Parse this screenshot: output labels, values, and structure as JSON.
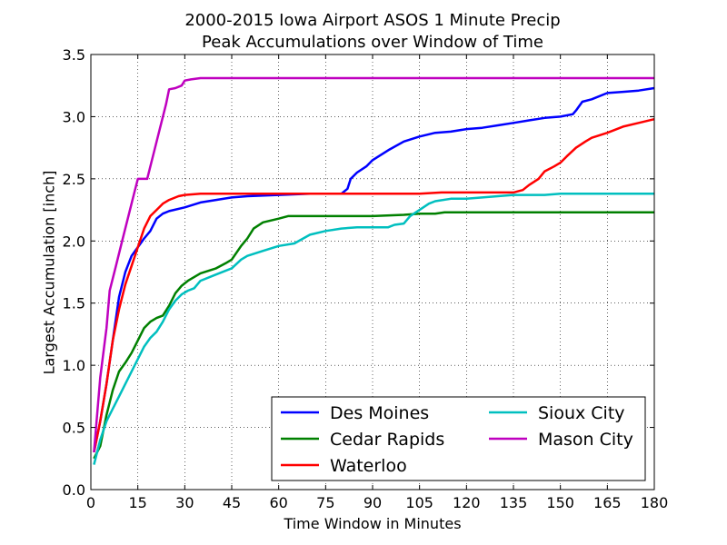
{
  "chart_data": {
    "type": "line",
    "title": "2000-2015 Iowa Airport ASOS 1 Minute Precip",
    "subtitle": "Peak Accumulations over Window of Time",
    "xlabel": "Time Window in Minutes",
    "ylabel": "Largest Accumulation [inch]",
    "xlim": [
      0,
      180
    ],
    "ylim": [
      0,
      3.5
    ],
    "xticks": [
      0,
      15,
      30,
      45,
      60,
      75,
      90,
      105,
      120,
      135,
      150,
      165,
      180
    ],
    "xtick_labels": [
      "0",
      "15",
      "30",
      "45",
      "60",
      "75",
      "90",
      "105",
      "120",
      "135",
      "150",
      "165",
      "180"
    ],
    "yticks": [
      0,
      0.5,
      1.0,
      1.5,
      2.0,
      2.5,
      3.0,
      3.5
    ],
    "ytick_labels": [
      "0.0",
      "0.5",
      "1.0",
      "1.5",
      "2.0",
      "2.5",
      "3.0",
      "3.5"
    ],
    "grid": true,
    "legend_position": "lower-right",
    "series": [
      {
        "name": "Des Moines",
        "color": "#0000ff",
        "points": [
          [
            1,
            0.3
          ],
          [
            3,
            0.55
          ],
          [
            5,
            0.85
          ],
          [
            7,
            1.2
          ],
          [
            9,
            1.55
          ],
          [
            11,
            1.75
          ],
          [
            13,
            1.88
          ],
          [
            15,
            1.95
          ],
          [
            17,
            2.02
          ],
          [
            19,
            2.08
          ],
          [
            21,
            2.18
          ],
          [
            23,
            2.22
          ],
          [
            25,
            2.24
          ],
          [
            30,
            2.27
          ],
          [
            35,
            2.31
          ],
          [
            40,
            2.33
          ],
          [
            45,
            2.35
          ],
          [
            50,
            2.36
          ],
          [
            60,
            2.37
          ],
          [
            70,
            2.38
          ],
          [
            80,
            2.38
          ],
          [
            82,
            2.42
          ],
          [
            83,
            2.5
          ],
          [
            85,
            2.55
          ],
          [
            88,
            2.6
          ],
          [
            90,
            2.65
          ],
          [
            95,
            2.73
          ],
          [
            100,
            2.8
          ],
          [
            105,
            2.84
          ],
          [
            110,
            2.87
          ],
          [
            115,
            2.88
          ],
          [
            120,
            2.9
          ],
          [
            125,
            2.91
          ],
          [
            130,
            2.93
          ],
          [
            135,
            2.95
          ],
          [
            140,
            2.97
          ],
          [
            145,
            2.99
          ],
          [
            150,
            3.0
          ],
          [
            154,
            3.02
          ],
          [
            155,
            3.05
          ],
          [
            157,
            3.12
          ],
          [
            160,
            3.14
          ],
          [
            165,
            3.19
          ],
          [
            170,
            3.2
          ],
          [
            175,
            3.21
          ],
          [
            180,
            3.23
          ]
        ]
      },
      {
        "name": "Cedar Rapids",
        "color": "#008000",
        "points": [
          [
            1,
            0.25
          ],
          [
            3,
            0.35
          ],
          [
            5,
            0.6
          ],
          [
            7,
            0.8
          ],
          [
            9,
            0.95
          ],
          [
            11,
            1.02
          ],
          [
            13,
            1.1
          ],
          [
            15,
            1.2
          ],
          [
            17,
            1.3
          ],
          [
            19,
            1.35
          ],
          [
            21,
            1.38
          ],
          [
            23,
            1.4
          ],
          [
            25,
            1.48
          ],
          [
            27,
            1.58
          ],
          [
            29,
            1.64
          ],
          [
            31,
            1.68
          ],
          [
            35,
            1.74
          ],
          [
            40,
            1.78
          ],
          [
            43,
            1.82
          ],
          [
            45,
            1.85
          ],
          [
            48,
            1.96
          ],
          [
            50,
            2.02
          ],
          [
            52,
            2.1
          ],
          [
            55,
            2.15
          ],
          [
            60,
            2.18
          ],
          [
            63,
            2.2
          ],
          [
            70,
            2.2
          ],
          [
            80,
            2.2
          ],
          [
            90,
            2.2
          ],
          [
            100,
            2.21
          ],
          [
            105,
            2.22
          ],
          [
            110,
            2.22
          ],
          [
            113,
            2.23
          ],
          [
            120,
            2.23
          ],
          [
            140,
            2.23
          ],
          [
            160,
            2.23
          ],
          [
            180,
            2.23
          ]
        ]
      },
      {
        "name": "Waterloo",
        "color": "#ff0000",
        "points": [
          [
            1,
            0.3
          ],
          [
            3,
            0.55
          ],
          [
            5,
            0.85
          ],
          [
            7,
            1.2
          ],
          [
            9,
            1.45
          ],
          [
            11,
            1.65
          ],
          [
            13,
            1.8
          ],
          [
            15,
            1.95
          ],
          [
            17,
            2.1
          ],
          [
            19,
            2.2
          ],
          [
            21,
            2.25
          ],
          [
            23,
            2.3
          ],
          [
            25,
            2.33
          ],
          [
            28,
            2.36
          ],
          [
            30,
            2.37
          ],
          [
            35,
            2.38
          ],
          [
            45,
            2.38
          ],
          [
            60,
            2.38
          ],
          [
            75,
            2.38
          ],
          [
            90,
            2.38
          ],
          [
            105,
            2.38
          ],
          [
            112,
            2.39
          ],
          [
            120,
            2.39
          ],
          [
            135,
            2.39
          ],
          [
            138,
            2.41
          ],
          [
            140,
            2.45
          ],
          [
            143,
            2.5
          ],
          [
            145,
            2.56
          ],
          [
            148,
            2.6
          ],
          [
            150,
            2.63
          ],
          [
            152,
            2.68
          ],
          [
            155,
            2.75
          ],
          [
            158,
            2.8
          ],
          [
            160,
            2.83
          ],
          [
            165,
            2.87
          ],
          [
            170,
            2.92
          ],
          [
            175,
            2.95
          ],
          [
            180,
            2.98
          ]
        ]
      },
      {
        "name": "Sioux City",
        "color": "#00bfbf",
        "points": [
          [
            1,
            0.2
          ],
          [
            3,
            0.4
          ],
          [
            5,
            0.55
          ],
          [
            7,
            0.65
          ],
          [
            9,
            0.75
          ],
          [
            11,
            0.85
          ],
          [
            13,
            0.95
          ],
          [
            15,
            1.05
          ],
          [
            17,
            1.15
          ],
          [
            19,
            1.22
          ],
          [
            21,
            1.27
          ],
          [
            23,
            1.35
          ],
          [
            25,
            1.45
          ],
          [
            27,
            1.52
          ],
          [
            29,
            1.57
          ],
          [
            31,
            1.6
          ],
          [
            33,
            1.62
          ],
          [
            35,
            1.68
          ],
          [
            40,
            1.73
          ],
          [
            45,
            1.78
          ],
          [
            48,
            1.85
          ],
          [
            50,
            1.88
          ],
          [
            55,
            1.92
          ],
          [
            60,
            1.96
          ],
          [
            65,
            1.98
          ],
          [
            70,
            2.05
          ],
          [
            75,
            2.08
          ],
          [
            80,
            2.1
          ],
          [
            85,
            2.11
          ],
          [
            95,
            2.11
          ],
          [
            97,
            2.13
          ],
          [
            100,
            2.14
          ],
          [
            102,
            2.2
          ],
          [
            105,
            2.25
          ],
          [
            108,
            2.3
          ],
          [
            110,
            2.32
          ],
          [
            115,
            2.34
          ],
          [
            120,
            2.34
          ],
          [
            125,
            2.35
          ],
          [
            130,
            2.36
          ],
          [
            135,
            2.37
          ],
          [
            145,
            2.37
          ],
          [
            150,
            2.38
          ],
          [
            160,
            2.38
          ],
          [
            180,
            2.38
          ]
        ]
      },
      {
        "name": "Mason City",
        "color": "#bf00bf",
        "points": [
          [
            1,
            0.3
          ],
          [
            3,
            0.9
          ],
          [
            5,
            1.3
          ],
          [
            6,
            1.6
          ],
          [
            8,
            1.8
          ],
          [
            10,
            2.0
          ],
          [
            12,
            2.2
          ],
          [
            14,
            2.4
          ],
          [
            15,
            2.5
          ],
          [
            18,
            2.5
          ],
          [
            20,
            2.7
          ],
          [
            22,
            2.9
          ],
          [
            24,
            3.1
          ],
          [
            25,
            3.22
          ],
          [
            27,
            3.23
          ],
          [
            29,
            3.25
          ],
          [
            30,
            3.29
          ],
          [
            32,
            3.3
          ],
          [
            35,
            3.31
          ],
          [
            45,
            3.31
          ],
          [
            60,
            3.31
          ],
          [
            90,
            3.31
          ],
          [
            120,
            3.31
          ],
          [
            150,
            3.31
          ],
          [
            180,
            3.31
          ]
        ]
      }
    ]
  }
}
